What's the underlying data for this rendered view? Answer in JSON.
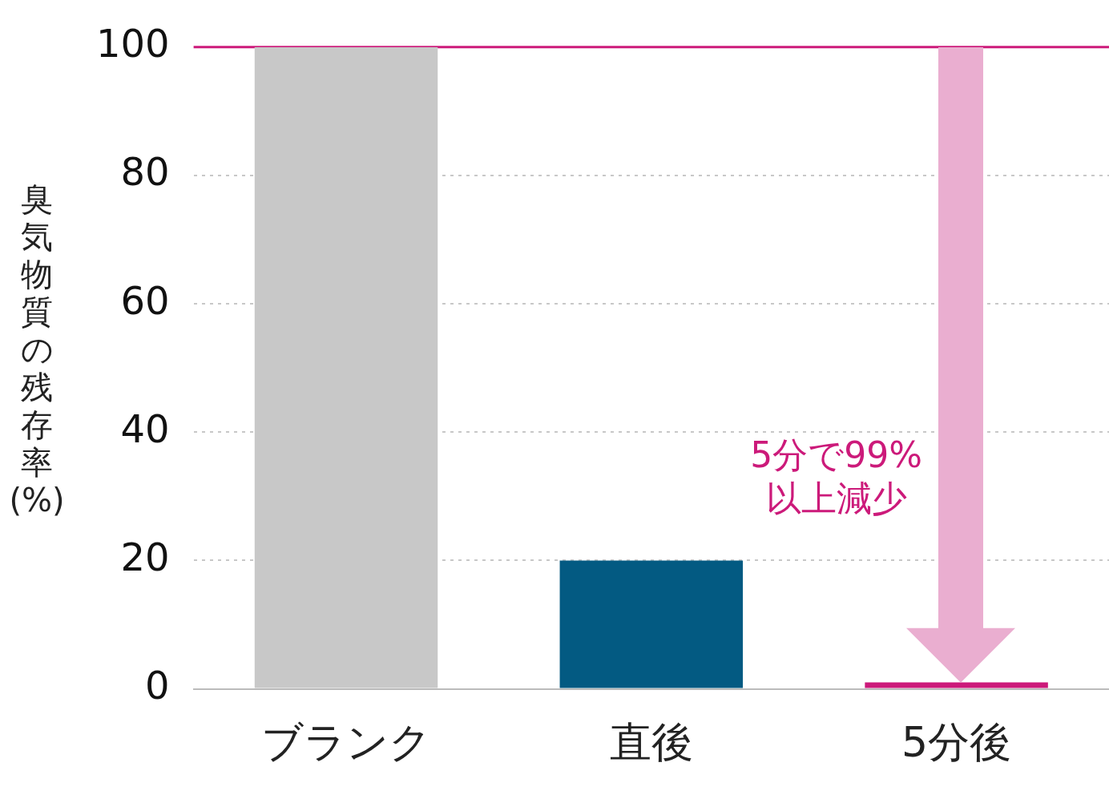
{
  "chart_data": {
    "type": "bar",
    "ylabel": "臭気物質の残存率(%)",
    "categories": [
      "ブランク",
      "直後",
      "5分後"
    ],
    "values": [
      100,
      20,
      1
    ],
    "colors": [
      "#c8c8c8",
      "#035a82",
      "#cc1a7a"
    ],
    "ylim": [
      0,
      100
    ],
    "yticks": [
      0,
      20,
      40,
      60,
      80,
      100
    ],
    "grid": "y",
    "legend": false,
    "ref_lines": [
      {
        "axis": "y",
        "value": 100,
        "color": "#cc1a7a"
      }
    ],
    "annotations": [
      "5分で99%以上減少"
    ]
  }
}
